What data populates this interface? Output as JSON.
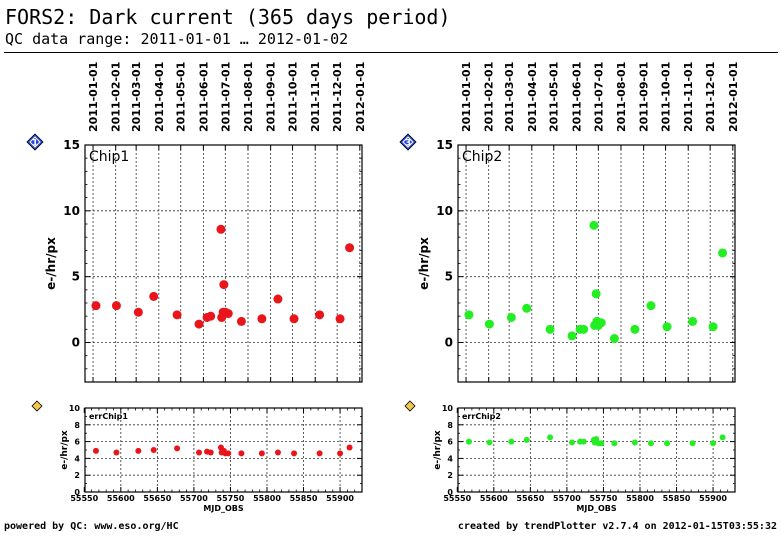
{
  "header": {
    "title": "FORS2: Dark current (365 days period)",
    "subtitle": "QC data range: 2011-01-01 … 2012-01-02"
  },
  "footer": {
    "left": "powered by QC: www.eso.org/HC",
    "right": "created by trendPlotter v2.7.4 on 2012-01-15T03:55:32"
  },
  "chart_data": [
    {
      "id": "chip1-dark",
      "type": "scatter",
      "badge": "1",
      "label": "Chip1",
      "xlabel": "",
      "ylabel": "e-/hr/px",
      "xlim": [
        55551,
        55930
      ],
      "ylim": [
        -3,
        15
      ],
      "yticks": [
        0,
        5,
        10,
        15
      ],
      "grid": true,
      "color": "#e8151b",
      "date_ticks": [
        "2011-01-01",
        "2011-02-01",
        "2011-03-01",
        "2011-04-01",
        "2011-05-01",
        "2011-06-01",
        "2011-07-01",
        "2011-08-01",
        "2011-09-01",
        "2011-10-01",
        "2011-11-01",
        "2011-12-01",
        "2012-01-01"
      ],
      "date_ticks_mjd": [
        55562,
        55593,
        55621,
        55652,
        55682,
        55713,
        55743,
        55774,
        55805,
        55835,
        55866,
        55896,
        55927
      ],
      "x": [
        55566,
        55594,
        55624,
        55645,
        55677,
        55707,
        55718,
        55723,
        55737,
        55738,
        55740,
        55741,
        55743,
        55747,
        55765,
        55793,
        55815,
        55837,
        55872,
        55900,
        55913
      ],
      "y": [
        2.8,
        2.8,
        2.3,
        3.5,
        2.1,
        1.4,
        1.9,
        2.0,
        8.6,
        1.9,
        2.3,
        4.4,
        2.3,
        2.2,
        1.6,
        1.8,
        3.3,
        1.8,
        2.1,
        1.8,
        7.2
      ]
    },
    {
      "id": "chip2-dark",
      "type": "scatter",
      "badge": "3",
      "label": "Chip2",
      "xlabel": "",
      "ylabel": "e-/hr/px",
      "xlim": [
        55551,
        55930
      ],
      "ylim": [
        -3,
        15
      ],
      "yticks": [
        0,
        5,
        10,
        15
      ],
      "grid": true,
      "color": "#22ee22",
      "date_ticks": [
        "2011-01-01",
        "2011-02-01",
        "2011-03-01",
        "2011-04-01",
        "2011-05-01",
        "2011-06-01",
        "2011-07-01",
        "2011-08-01",
        "2011-09-01",
        "2011-10-01",
        "2011-11-01",
        "2011-12-01",
        "2012-01-01"
      ],
      "date_ticks_mjd": [
        55562,
        55593,
        55621,
        55652,
        55682,
        55713,
        55743,
        55774,
        55805,
        55835,
        55866,
        55896,
        55927
      ],
      "x": [
        55566,
        55594,
        55624,
        55645,
        55677,
        55707,
        55718,
        55723,
        55737,
        55738,
        55740,
        55741,
        55743,
        55747,
        55765,
        55793,
        55815,
        55837,
        55872,
        55900,
        55913
      ],
      "y": [
        2.1,
        1.4,
        1.9,
        2.6,
        1.0,
        0.5,
        1.0,
        1.0,
        8.9,
        1.3,
        3.7,
        1.6,
        1.3,
        1.5,
        0.3,
        1.0,
        2.8,
        1.2,
        1.6,
        1.2,
        6.8
      ]
    },
    {
      "id": "chip1-err",
      "type": "scatter",
      "badge": "2",
      "label": "errChip1",
      "xlabel": "MJD_OBS",
      "ylabel": "e-/hr/px",
      "xlim": [
        55551,
        55930
      ],
      "ylim": [
        0,
        10
      ],
      "yticks": [
        0,
        2,
        4,
        6,
        8,
        10
      ],
      "xticks": [
        55550,
        55600,
        55650,
        55700,
        55750,
        55800,
        55850,
        55900
      ],
      "grid": true,
      "color": "#e8151b",
      "x": [
        55566,
        55594,
        55624,
        55645,
        55677,
        55707,
        55718,
        55723,
        55737,
        55738,
        55740,
        55741,
        55743,
        55747,
        55765,
        55793,
        55815,
        55837,
        55872,
        55900,
        55913
      ],
      "y": [
        4.9,
        4.7,
        4.9,
        5.0,
        5.2,
        4.7,
        4.8,
        4.7,
        5.3,
        4.7,
        4.8,
        4.9,
        4.6,
        4.6,
        4.6,
        4.6,
        4.7,
        4.6,
        4.6,
        4.6,
        5.3
      ]
    },
    {
      "id": "chip2-err",
      "type": "scatter",
      "badge": "4",
      "label": "errChip2",
      "xlabel": "MJD_OBS",
      "ylabel": "e-/hr/px",
      "xlim": [
        55551,
        55930
      ],
      "ylim": [
        0,
        10
      ],
      "yticks": [
        0,
        2,
        4,
        6,
        8,
        10
      ],
      "xticks": [
        55550,
        55600,
        55650,
        55700,
        55750,
        55800,
        55850,
        55900
      ],
      "grid": true,
      "color": "#22ee22",
      "x": [
        55566,
        55594,
        55624,
        55645,
        55677,
        55707,
        55718,
        55723,
        55737,
        55738,
        55740,
        55741,
        55743,
        55747,
        55765,
        55793,
        55815,
        55837,
        55872,
        55900,
        55913
      ],
      "y": [
        6.0,
        5.9,
        6.0,
        6.2,
        6.5,
        5.9,
        6.0,
        6.0,
        6.2,
        5.9,
        6.3,
        5.9,
        5.8,
        5.8,
        5.8,
        5.9,
        5.8,
        5.8,
        5.8,
        5.8,
        6.5
      ]
    }
  ]
}
